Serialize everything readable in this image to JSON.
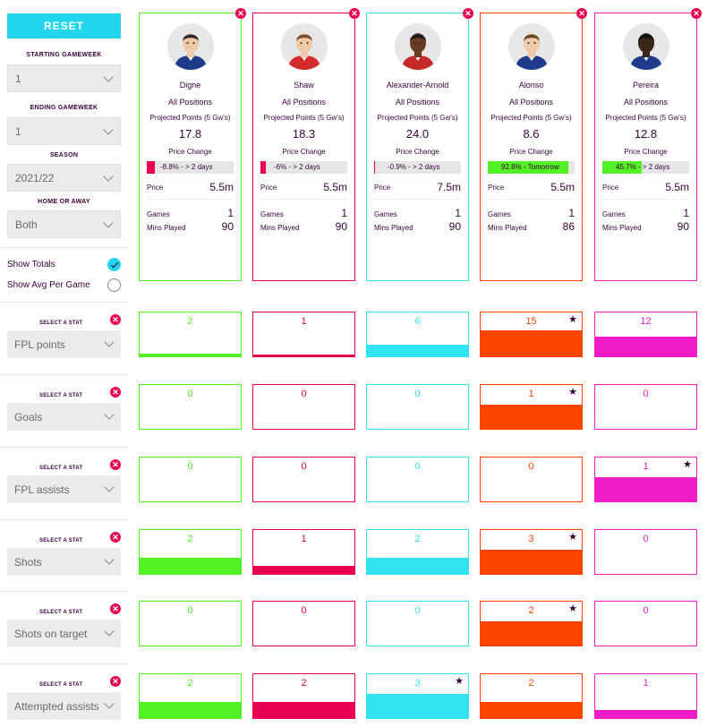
{
  "colors": {
    "green": "#52f025",
    "pink": "#e90052",
    "cyan": "#30e3ef",
    "orange": "#fa4500",
    "magenta": "#f01cc8",
    "purple": "#37003c"
  },
  "controls": {
    "reset_label": "RESET",
    "starting_gw_label": "STARTING GAMEWEEK",
    "starting_gw_value": "1",
    "ending_gw_label": "ENDING GAMEWEEK",
    "ending_gw_value": "1",
    "season_label": "SEASON",
    "season_value": "2021/22",
    "home_away_label": "HOME OR AWAY",
    "home_away_value": "Both",
    "show_totals_label": "Show Totals",
    "show_totals_checked": true,
    "show_avg_label": "Show Avg Per Game",
    "show_avg_checked": false
  },
  "card_labels": {
    "positions": "All Positions",
    "projected": "Projected Points (5 Gw's)",
    "price_change": "Price Change",
    "price": "Price",
    "games": "Games",
    "mins": "Mins Played"
  },
  "players": [
    {
      "name": "Digne",
      "projected": "17.8",
      "price_change_text": "-8.8% - > 2 days",
      "price_change_pct": 8.8,
      "price_change_color": "#e90052",
      "price": "5.5m",
      "games": "1",
      "mins": "90",
      "color": "#52f025",
      "shirt": "#1e3a8a",
      "skin": "#f0c9a8",
      "hair": "#2a2a2a"
    },
    {
      "name": "Shaw",
      "projected": "18.3",
      "price_change_text": "-6% - > 2 days",
      "price_change_pct": 6,
      "price_change_color": "#e90052",
      "price": "5.5m",
      "games": "1",
      "mins": "90",
      "color": "#e90052",
      "shirt": "#d62b2b",
      "skin": "#f0c9a8",
      "hair": "#7a4a2a"
    },
    {
      "name": "Alexander-Arnold",
      "projected": "24.0",
      "price_change_text": "-0.9% - > 2 days",
      "price_change_pct": 0.9,
      "price_change_color": "#e90052",
      "price": "7.5m",
      "games": "1",
      "mins": "90",
      "color": "#30e3ef",
      "shirt": "#c62828",
      "skin": "#6b3a22",
      "hair": "#1a1a1a"
    },
    {
      "name": "Alonso",
      "projected": "8.6",
      "price_change_text": "92.8% - Tomorrow",
      "price_change_pct": 92.8,
      "price_change_color": "#52f025",
      "price": "5.5m",
      "games": "1",
      "mins": "86",
      "color": "#fa4500",
      "shirt": "#1e3a8a",
      "skin": "#f0c9a8",
      "hair": "#6a4a2a"
    },
    {
      "name": "Pereira",
      "projected": "12.8",
      "price_change_text": "45.7% - > 2 days",
      "price_change_pct": 45.7,
      "price_change_color": "#52f025",
      "price": "5.5m",
      "games": "1",
      "mins": "90",
      "color": "#f01cc8",
      "shirt": "#1e3a8a",
      "skin": "#3b2418",
      "hair": "#111111"
    }
  ],
  "stats": {
    "select_label": "SELECT A STAT",
    "rows": [
      {
        "name": "FPL points",
        "values": [
          "2",
          "1",
          "6",
          "15",
          "12"
        ],
        "fill": [
          0.07,
          0.04,
          0.27,
          0.6,
          0.45
        ],
        "star": 3
      },
      {
        "name": "Goals",
        "values": [
          "0",
          "0",
          "0",
          "1",
          "0"
        ],
        "fill": [
          0,
          0,
          0,
          0.56,
          0
        ],
        "star": 3
      },
      {
        "name": "FPL assists",
        "values": [
          "0",
          "0",
          "0",
          "0",
          "1"
        ],
        "fill": [
          0,
          0,
          0,
          0,
          0.56
        ],
        "star": 4
      },
      {
        "name": "Shots",
        "values": [
          "2",
          "1",
          "2",
          "3",
          "0"
        ],
        "fill": [
          0.37,
          0.19,
          0.37,
          0.56,
          0
        ],
        "star": 3
      },
      {
        "name": "Shots on target",
        "values": [
          "0",
          "0",
          "0",
          "2",
          "0"
        ],
        "fill": [
          0,
          0,
          0,
          0.56,
          0
        ],
        "star": 3
      },
      {
        "name": "Attempted assists",
        "values": [
          "2",
          "2",
          "3",
          "2",
          "1"
        ],
        "fill": [
          0.37,
          0.37,
          0.56,
          0.37,
          0.19
        ],
        "star": 2
      }
    ]
  }
}
